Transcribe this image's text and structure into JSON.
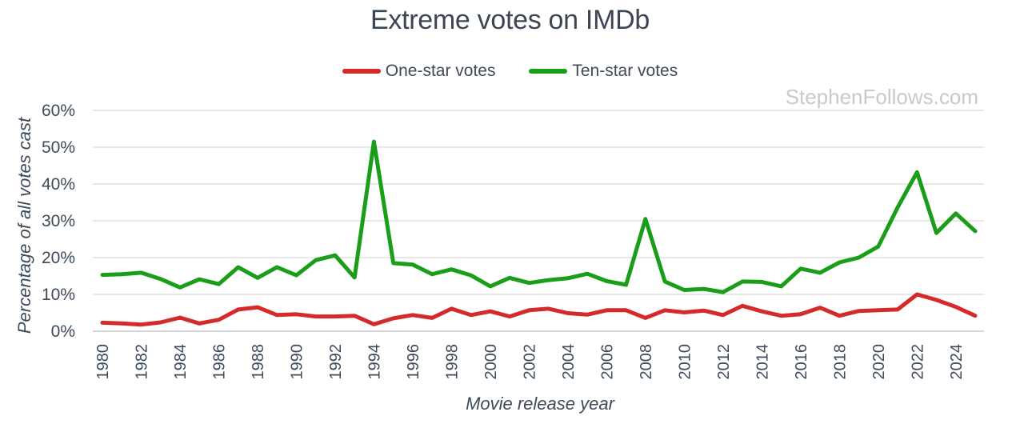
{
  "chart_data": {
    "type": "line",
    "title": "Extreme votes on IMDb",
    "xlabel": "Movie release year",
    "ylabel": "Percentage of all votes cast",
    "watermark": "StephenFollows.com",
    "ylim": [
      0,
      60
    ],
    "yticks": [
      "0%",
      "10%",
      "20%",
      "30%",
      "40%",
      "50%",
      "60%"
    ],
    "ytick_values": [
      0,
      10,
      20,
      30,
      40,
      50,
      60
    ],
    "xtick_labels": [
      "1980",
      "1982",
      "1984",
      "1986",
      "1988",
      "1990",
      "1992",
      "1994",
      "1996",
      "1998",
      "2000",
      "2002",
      "2004",
      "2006",
      "2008",
      "2010",
      "2012",
      "2014",
      "2016",
      "2018",
      "2020",
      "2022",
      "2024"
    ],
    "grid": true,
    "legend_position": "top-center",
    "x": [
      1980,
      1981,
      1982,
      1983,
      1984,
      1985,
      1986,
      1987,
      1988,
      1989,
      1990,
      1991,
      1992,
      1993,
      1994,
      1995,
      1996,
      1997,
      1998,
      1999,
      2000,
      2001,
      2002,
      2003,
      2004,
      2005,
      2006,
      2007,
      2008,
      2009,
      2010,
      2011,
      2012,
      2013,
      2014,
      2015,
      2016,
      2017,
      2018,
      2019,
      2020,
      2021,
      2022,
      2023,
      2024,
      2025
    ],
    "series": [
      {
        "name": "One-star votes",
        "color": "#d42a2a",
        "values": [
          2.3,
          2.1,
          1.8,
          2.4,
          3.7,
          2.1,
          3.1,
          5.9,
          6.5,
          4.4,
          4.6,
          4.0,
          4.0,
          4.2,
          1.9,
          3.5,
          4.4,
          3.6,
          6.1,
          4.4,
          5.4,
          4.0,
          5.7,
          6.1,
          4.9,
          4.5,
          5.7,
          5.7,
          3.6,
          5.7,
          5.1,
          5.6,
          4.4,
          6.9,
          5.4,
          4.2,
          4.6,
          6.4,
          4.2,
          5.5,
          5.7,
          5.9,
          10.0,
          8.5,
          6.6,
          4.2
        ]
      },
      {
        "name": "Ten-star votes",
        "color": "#1a9e1a",
        "values": [
          15.3,
          15.5,
          15.9,
          14.2,
          11.9,
          14.1,
          12.8,
          17.4,
          14.5,
          17.4,
          15.2,
          19.3,
          20.6,
          14.6,
          51.5,
          18.5,
          18.1,
          15.5,
          16.8,
          15.2,
          12.2,
          14.5,
          13.1,
          13.9,
          14.4,
          15.6,
          13.6,
          12.6,
          30.5,
          13.5,
          11.2,
          11.5,
          10.6,
          13.5,
          13.4,
          12.2,
          17.0,
          15.9,
          18.7,
          20.0,
          23.0,
          33.6,
          43.2,
          26.7,
          32.0,
          27.2
        ]
      }
    ]
  }
}
